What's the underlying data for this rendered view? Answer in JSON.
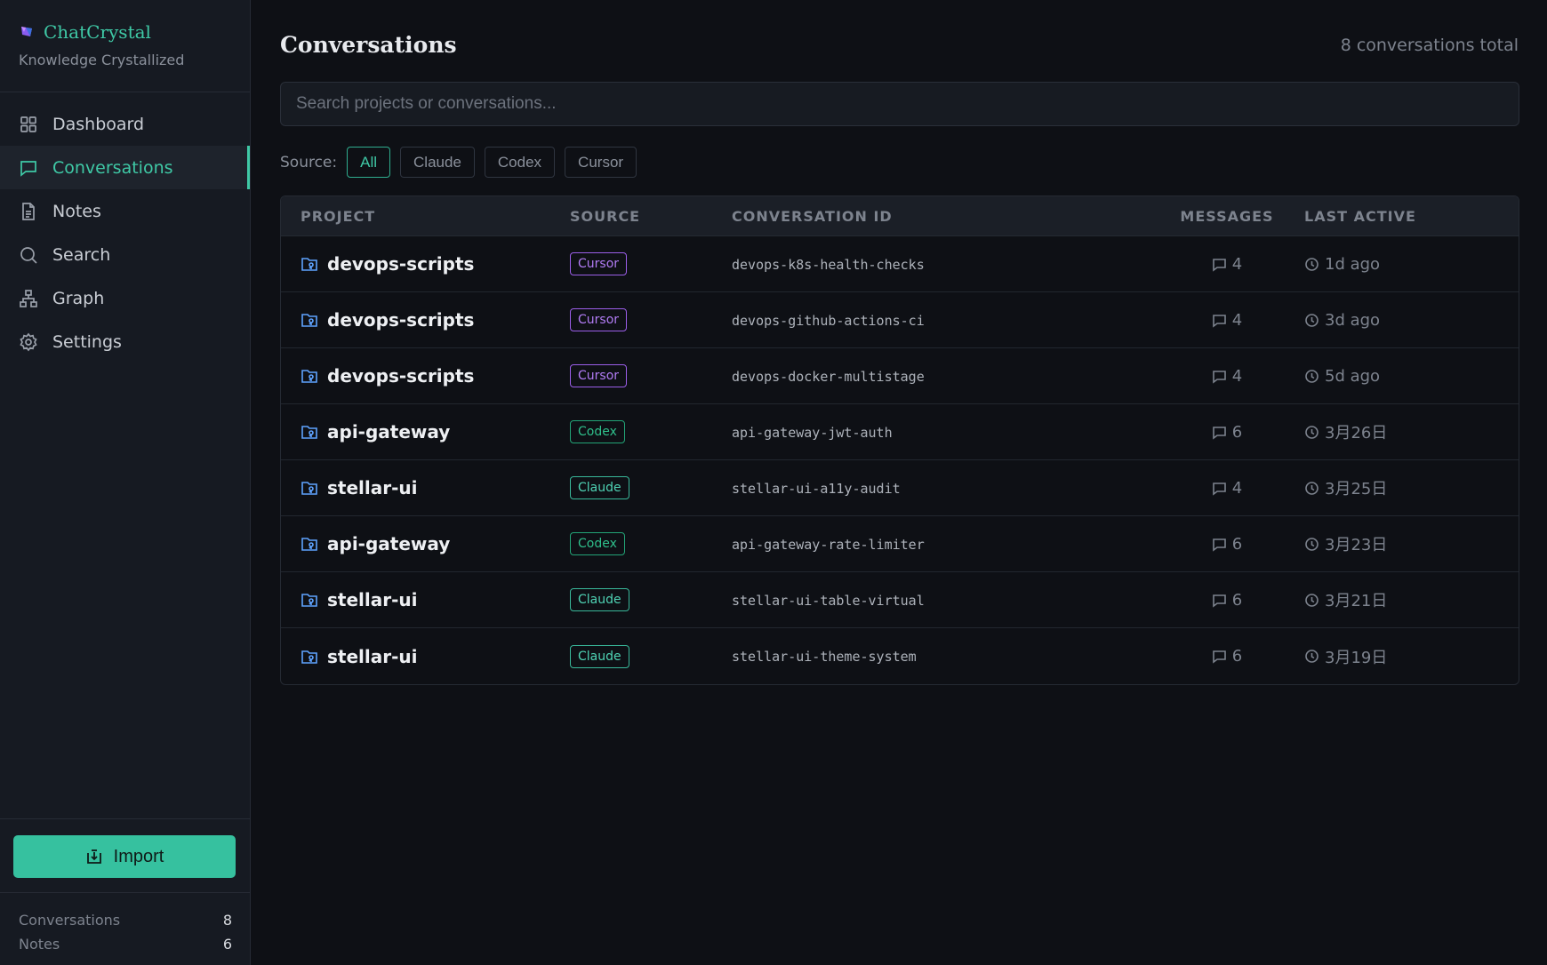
{
  "app": {
    "name": "ChatCrystal",
    "tagline": "Knowledge Crystallized"
  },
  "sidebar": {
    "items": [
      {
        "label": "Dashboard",
        "icon": "dashboard-icon"
      },
      {
        "label": "Conversations",
        "icon": "chat-icon",
        "active": true
      },
      {
        "label": "Notes",
        "icon": "document-icon"
      },
      {
        "label": "Search",
        "icon": "search-icon"
      },
      {
        "label": "Graph",
        "icon": "graph-icon"
      },
      {
        "label": "Settings",
        "icon": "gear-icon"
      }
    ],
    "import_label": "Import",
    "stats": [
      {
        "label": "Conversations",
        "value": "8"
      },
      {
        "label": "Notes",
        "value": "6"
      }
    ]
  },
  "main": {
    "title": "Conversations",
    "total": "8 conversations total",
    "search_placeholder": "Search projects or conversations...",
    "filter_label": "Source:",
    "filters": [
      "All",
      "Claude",
      "Codex",
      "Cursor"
    ],
    "active_filter": "All"
  },
  "table": {
    "headers": [
      "PROJECT",
      "SOURCE",
      "CONVERSATION ID",
      "MESSAGES",
      "LAST ACTIVE"
    ],
    "rows": [
      {
        "project": "devops-scripts",
        "source": "Cursor",
        "id": "devops-k8s-health-checks",
        "messages": "4",
        "last_active": "1d ago"
      },
      {
        "project": "devops-scripts",
        "source": "Cursor",
        "id": "devops-github-actions-ci",
        "messages": "4",
        "last_active": "3d ago"
      },
      {
        "project": "devops-scripts",
        "source": "Cursor",
        "id": "devops-docker-multistage",
        "messages": "4",
        "last_active": "5d ago"
      },
      {
        "project": "api-gateway",
        "source": "Codex",
        "id": "api-gateway-jwt-auth",
        "messages": "6",
        "last_active": "3月26日"
      },
      {
        "project": "stellar-ui",
        "source": "Claude",
        "id": "stellar-ui-a11y-audit",
        "messages": "4",
        "last_active": "3月25日"
      },
      {
        "project": "api-gateway",
        "source": "Codex",
        "id": "api-gateway-rate-limiter",
        "messages": "6",
        "last_active": "3月23日"
      },
      {
        "project": "stellar-ui",
        "source": "Claude",
        "id": "stellar-ui-table-virtual",
        "messages": "6",
        "last_active": "3月21日"
      },
      {
        "project": "stellar-ui",
        "source": "Claude",
        "id": "stellar-ui-theme-system",
        "messages": "6",
        "last_active": "3月19日"
      }
    ]
  },
  "colors": {
    "accent": "#3fc9a6",
    "cursor": "#b27cf5",
    "codex": "#2fbf8b",
    "claude": "#4fd3b4",
    "folder": "#5fa3ff"
  }
}
